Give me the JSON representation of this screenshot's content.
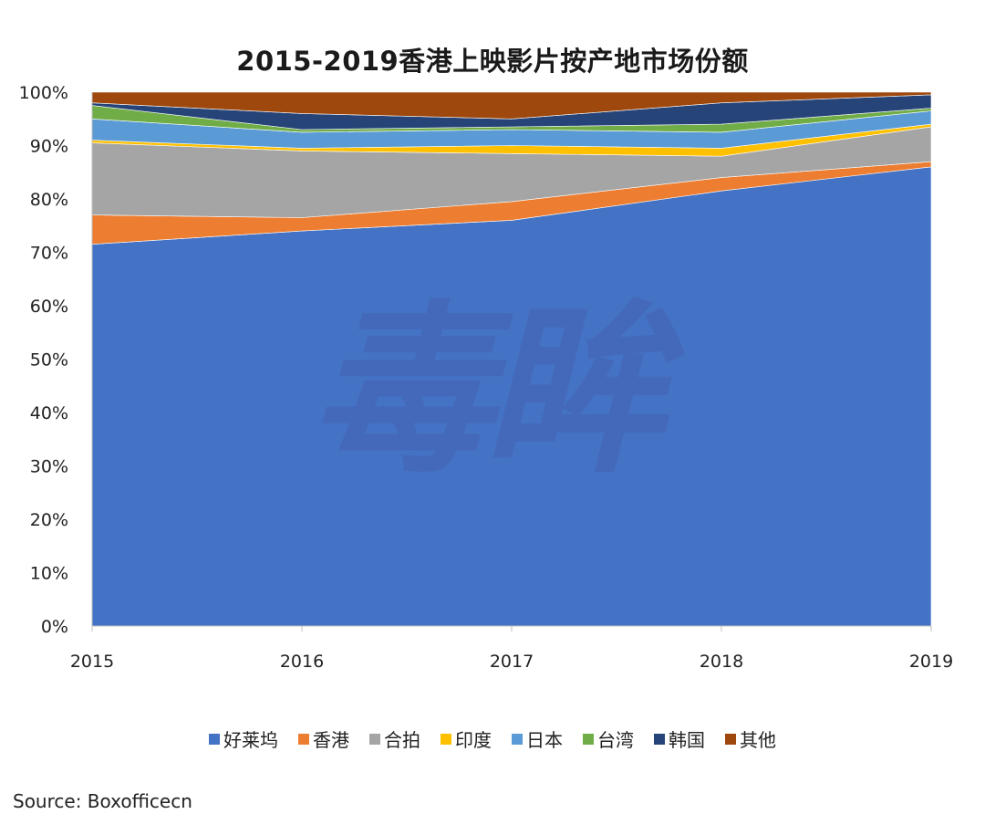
{
  "chart_data": {
    "type": "area",
    "stacked": true,
    "title": "2015-2019香港上映影片按产地市场份额",
    "x": [
      "2015",
      "2016",
      "2017",
      "2018",
      "2019"
    ],
    "ylim": [
      0,
      100
    ],
    "yticks": [
      "0%",
      "10%",
      "20%",
      "30%",
      "40%",
      "50%",
      "60%",
      "70%",
      "80%",
      "90%",
      "100%"
    ],
    "legend_position": "bottom",
    "grid": false,
    "series": [
      {
        "name": "好莱坞",
        "color": "#4472C4",
        "values": [
          71.5,
          74,
          76,
          81.5,
          86
        ]
      },
      {
        "name": "香港",
        "color": "#ED7D31",
        "values": [
          5.5,
          2.5,
          3.5,
          2.5,
          1
        ]
      },
      {
        "name": "合拍",
        "color": "#A5A5A5",
        "values": [
          13.5,
          12.5,
          9,
          4,
          6.5
        ]
      },
      {
        "name": "印度",
        "color": "#FFC000",
        "values": [
          0.5,
          0.5,
          1.5,
          1.5,
          0.5
        ]
      },
      {
        "name": "日本",
        "color": "#5B9BD5",
        "values": [
          4,
          3,
          3,
          3,
          2.5
        ]
      },
      {
        "name": "台湾",
        "color": "#70AD47",
        "values": [
          2.5,
          0.5,
          0.5,
          1.5,
          0.5
        ]
      },
      {
        "name": "韩国",
        "color": "#264478",
        "values": [
          0.5,
          3,
          1.5,
          4,
          2.5
        ]
      },
      {
        "name": "其他",
        "color": "#9E480E",
        "values": [
          2,
          4,
          5,
          2,
          0.5
        ]
      }
    ]
  },
  "watermark": "毒眸",
  "source": "Source: Boxofficecn"
}
